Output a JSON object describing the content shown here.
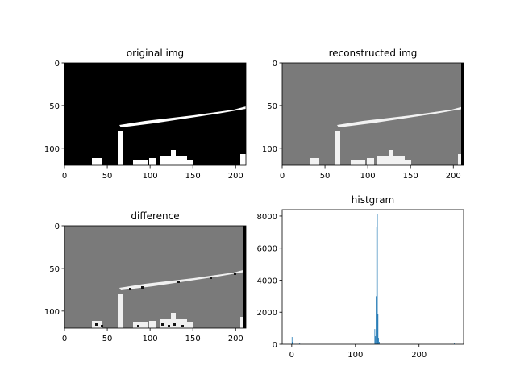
{
  "figure": {
    "panels": [
      {
        "id": "original",
        "title": "original img"
      },
      {
        "id": "reconstructed",
        "title": "reconstructed img"
      },
      {
        "id": "difference",
        "title": "difference"
      },
      {
        "id": "hist",
        "title": "histgram"
      }
    ]
  },
  "chart_data": [
    {
      "type": "heatmap",
      "title": "original img",
      "image_width": 212,
      "image_height": 120,
      "x_ticks": [
        0,
        50,
        100,
        150,
        200
      ],
      "y_ticks": [
        0,
        50,
        100
      ],
      "background_color": "#000000",
      "feature_color": "#ffffff"
    },
    {
      "type": "heatmap",
      "title": "reconstructed img",
      "image_width": 212,
      "image_height": 120,
      "x_ticks": [
        0,
        50,
        100,
        150,
        200
      ],
      "y_ticks": [
        0,
        50,
        100
      ],
      "background_color": "#7a7a7a",
      "feature_color": "#f2f2f2"
    },
    {
      "type": "heatmap",
      "title": "difference",
      "image_width": 212,
      "image_height": 120,
      "x_ticks": [
        0,
        50,
        100,
        150,
        200
      ],
      "y_ticks": [
        0,
        50,
        100
      ],
      "background_color": "#7a7a7a",
      "feature_color": "#f0f0f0"
    },
    {
      "type": "bar",
      "title": "histgram",
      "xlim": [
        -15,
        270
      ],
      "ylim": [
        0,
        8400
      ],
      "x_ticks": [
        0,
        100,
        200
      ],
      "y_ticks": [
        0,
        2000,
        4000,
        6000,
        8000
      ],
      "bar_color": "#1f77b4",
      "bins": [
        {
          "x": 0,
          "count": 450
        },
        {
          "x": 1,
          "count": 150
        },
        {
          "x": 12,
          "count": 60
        },
        {
          "x": 130,
          "count": 950
        },
        {
          "x": 131,
          "count": 500
        },
        {
          "x": 132,
          "count": 3000
        },
        {
          "x": 133,
          "count": 7300
        },
        {
          "x": 134,
          "count": 8100
        },
        {
          "x": 135,
          "count": 1900
        },
        {
          "x": 136,
          "count": 400
        },
        {
          "x": 137,
          "count": 150
        },
        {
          "x": 255,
          "count": 60
        }
      ]
    }
  ]
}
